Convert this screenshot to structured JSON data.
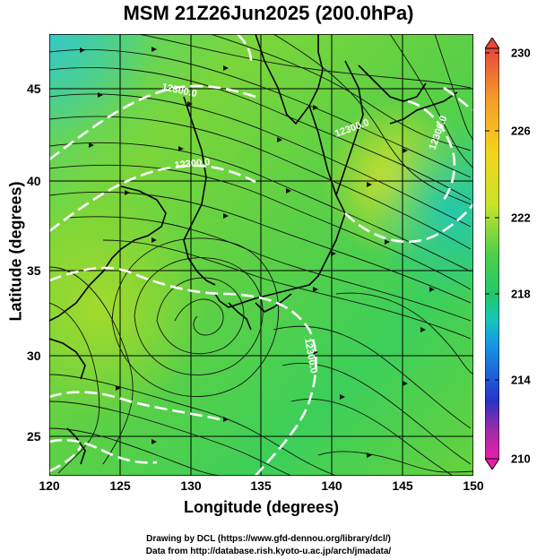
{
  "title": "MSM 21Z26Jun2025 (200.0hPa)",
  "axes": {
    "xlabel": "Longitude (degrees)",
    "ylabel": "Latitude  (degrees)",
    "x_ticks": [
      "120",
      "125",
      "130",
      "135",
      "140",
      "145",
      "150"
    ],
    "y_ticks": [
      "25",
      "30",
      "35",
      "40",
      "45"
    ]
  },
  "colorbar": {
    "ticks": [
      "230",
      "226",
      "222",
      "218",
      "214",
      "210"
    ],
    "colors": [
      "#e8473a",
      "#f59a2a",
      "#f2d31a",
      "#c8e32b",
      "#6ed23a",
      "#22c76a",
      "#17c7b8",
      "#1597e6",
      "#1d5fd6",
      "#2a32c8",
      "#a02aa8",
      "#e81fa8"
    ]
  },
  "contour_labels": [
    "12300.0",
    "12300.0",
    "12300.0",
    "12300.0",
    "12300.0"
  ],
  "credits": {
    "line1": "Drawing by DCL (https://www.gfd-dennou.org/library/dcl/)",
    "line2": "Data from http://database.rish.kyoto-u.ac.jp/arch/jmadata/"
  }
}
